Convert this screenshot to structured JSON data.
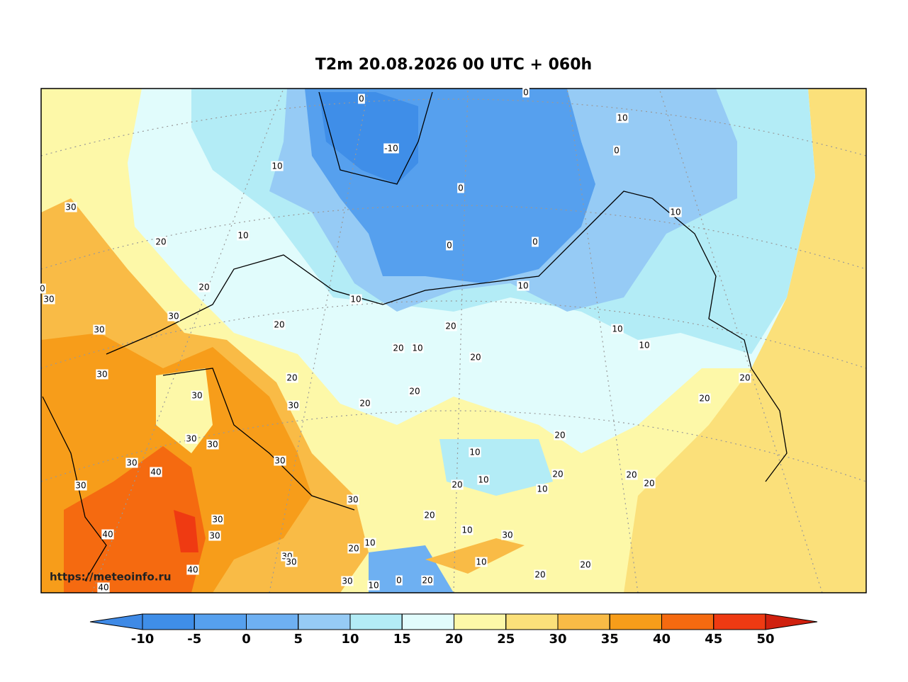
{
  "title": "T2m 20.08.2026 00 UTC + 060h",
  "watermark": "https://meteoinfo.ru",
  "colorbar": {
    "ticks": [
      -10,
      -5,
      0,
      5,
      10,
      15,
      20,
      25,
      30,
      35,
      40,
      45,
      50
    ],
    "colors": [
      "#3f8ae6",
      "#3f8ee8",
      "#56a0ee",
      "#6eb0f2",
      "#96cbf5",
      "#b3ecf6",
      "#e1fcfc",
      "#fdf8a8",
      "#fbe07a",
      "#f9bb46",
      "#f79d1a",
      "#f56a10",
      "#ef3a12",
      "#d0200e"
    ]
  },
  "contour_labels": [
    0,
    0,
    -10,
    10,
    0,
    10,
    0,
    30,
    10,
    10,
    20,
    0,
    0,
    20,
    10,
    0,
    30,
    10,
    30,
    20,
    20,
    10,
    30,
    20,
    10,
    10,
    20,
    30,
    20,
    20,
    20,
    30,
    30,
    20,
    20,
    20,
    30,
    30,
    10,
    30,
    30,
    40,
    20,
    20,
    10,
    20,
    20,
    30,
    10,
    30,
    20,
    30,
    10,
    30,
    40,
    30,
    10,
    20,
    30,
    30,
    10,
    20,
    40,
    20,
    30,
    10,
    0,
    20,
    40
  ]
}
